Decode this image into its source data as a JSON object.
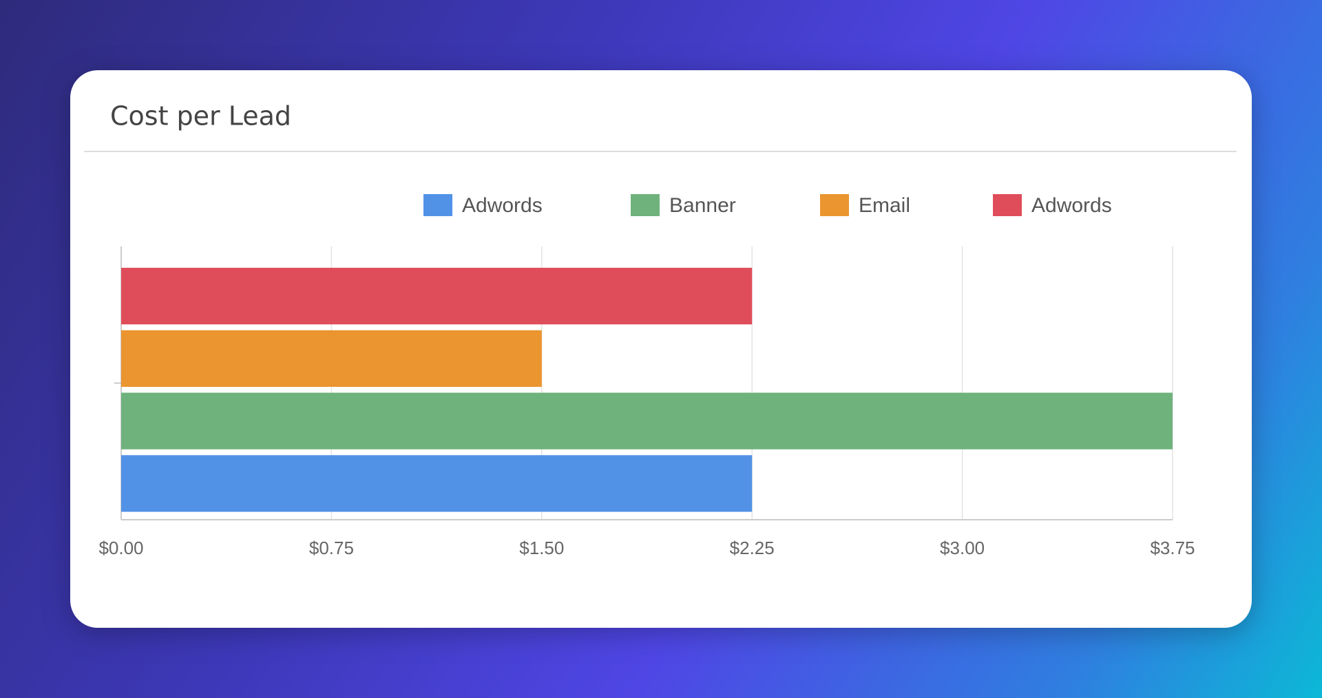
{
  "chart_data": {
    "type": "bar",
    "orientation": "horizontal",
    "title": "Cost per Lead",
    "categories": [
      null
    ],
    "series": [
      {
        "name": "Adwords",
        "color": "#5192e7",
        "values": [
          2.25
        ]
      },
      {
        "name": "Banner",
        "color": "#6fb27c",
        "values": [
          3.75
        ]
      },
      {
        "name": "Email",
        "color": "#ea952f",
        "values": [
          1.5
        ]
      },
      {
        "name": "Adwords",
        "color": "#e04d5a",
        "values": [
          2.25
        ]
      }
    ],
    "xlim": [
      0,
      3.75
    ],
    "xticks": [
      {
        "value": 0,
        "label": "$0.00"
      },
      {
        "value": 0.75,
        "label": "$0.75"
      },
      {
        "value": 1.5,
        "label": "$1.50"
      },
      {
        "value": 2.25,
        "label": "$2.25"
      },
      {
        "value": 3,
        "label": "$3.00"
      },
      {
        "value": 3.75,
        "label": "$3.75"
      }
    ],
    "grid": true,
    "legend": "top"
  }
}
